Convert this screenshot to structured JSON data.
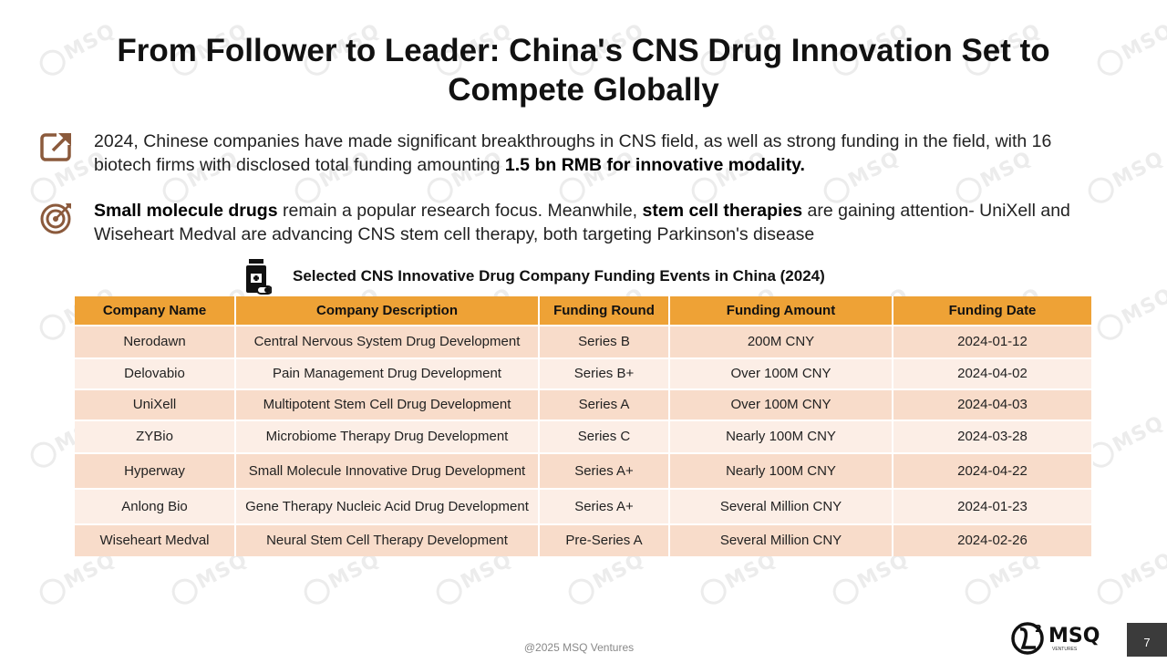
{
  "title": "From Follower to Leader: China's CNS Drug Innovation Set to Compete Globally",
  "bullets": [
    {
      "icon": "export-icon",
      "text_before": "2024, Chinese companies have made significant breakthroughs in CNS field, as well as strong funding in the field, with 16 biotech firms with disclosed total funding amounting ",
      "bold_1": "1.5 bn RMB for innovative modality.",
      "text_mid": "",
      "bold_2": "",
      "text_after": ""
    },
    {
      "icon": "target-icon",
      "text_before": "",
      "bold_1": "Small molecule drugs",
      "text_mid": " remain a popular research focus. Meanwhile, ",
      "bold_2": "stem cell therapies",
      "text_after": " are gaining attention- UniXell and Wiseheart Medval are advancing CNS stem cell therapy, both targeting Parkinson's disease"
    }
  ],
  "table": {
    "icon": "medicine-bottle-icon",
    "caption": "Selected CNS Innovative Drug Company Funding Events in China (2024)",
    "headers": {
      "company": "Company Name",
      "description": "Company Description",
      "round": "Funding Round",
      "amount": "Funding Amount",
      "date": "Funding Date"
    },
    "rows": [
      {
        "company": "Nerodawn",
        "description": "Central Nervous System Drug Development",
        "round": "Series B",
        "amount": "200M CNY",
        "date": "2024-01-12"
      },
      {
        "company": "Delovabio",
        "description": "Pain Management Drug Development",
        "round": "Series B+",
        "amount": "Over 100M CNY",
        "date": "2024-04-02"
      },
      {
        "company": "UniXell",
        "description": "Multipotent Stem Cell Drug Development",
        "round": "Series A",
        "amount": "Over 100M CNY",
        "date": "2024-04-03"
      },
      {
        "company": "ZYBio",
        "description": "Microbiome Therapy Drug Development",
        "round": "Series C",
        "amount": "Nearly 100M CNY",
        "date": "2024-03-28"
      },
      {
        "company": "Hyperway",
        "description": "Small Molecule Innovative Drug Development",
        "round": "Series A+",
        "amount": "Nearly 100M CNY",
        "date": "2024-04-22"
      },
      {
        "company": "Anlong Bio",
        "description": "Gene Therapy Nucleic Acid Drug Development",
        "round": "Series A+",
        "amount": "Several Million CNY",
        "date": "2024-01-23"
      },
      {
        "company": "Wiseheart Medval",
        "description": "Neural Stem Cell Therapy Development",
        "round": "Pre-Series A",
        "amount": "Several Million CNY",
        "date": "2024-02-26"
      }
    ]
  },
  "footer": "@2025 MSQ Ventures",
  "logo": {
    "text": "MSQ",
    "sub": "VENTURES",
    "watermark": "MSQ"
  },
  "page_number": "7",
  "colors": {
    "header_bg": "#EEA236",
    "row_odd": "#F8DCCA",
    "row_even": "#FCEEE6",
    "icon_brown": "#8B5A3C"
  }
}
